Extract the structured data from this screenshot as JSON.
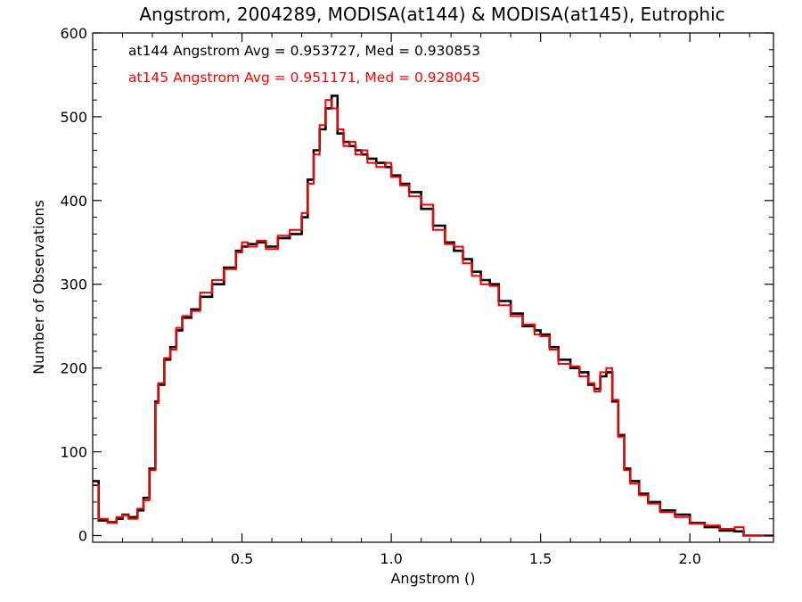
{
  "chart_data": {
    "type": "line",
    "step": true,
    "title": "Angstrom, 2004289, MODISA(at144) & MODISA(at145), Eutrophic",
    "xlabel": "Angstrom ()",
    "ylabel": "Number of Observations",
    "xlim": [
      0.0,
      2.28
    ],
    "ylim": [
      -8,
      600
    ],
    "xticks": [
      0.5,
      1.0,
      1.5,
      2.0
    ],
    "xtick_labels": [
      "0.5",
      "1.0",
      "1.5",
      "2.0"
    ],
    "yticks": [
      0,
      100,
      200,
      300,
      400,
      500,
      600
    ],
    "ytick_labels": [
      "0",
      "100",
      "200",
      "300",
      "400",
      "500",
      "600"
    ],
    "grid": false,
    "annotations": [
      {
        "text": "at144 Angstrom Avg = 0.953727, Med = 0.930853",
        "color": "#000000"
      },
      {
        "text": "at145 Angstrom Avg = 0.951171, Med = 0.928045",
        "color": "#ff0000"
      }
    ],
    "series": [
      {
        "id": "at144",
        "color": "#000000",
        "x": [
          0.0,
          0.02,
          0.05,
          0.08,
          0.1,
          0.12,
          0.15,
          0.17,
          0.19,
          0.21,
          0.22,
          0.24,
          0.26,
          0.28,
          0.3,
          0.33,
          0.36,
          0.4,
          0.44,
          0.48,
          0.5,
          0.52,
          0.55,
          0.58,
          0.62,
          0.66,
          0.7,
          0.72,
          0.74,
          0.76,
          0.78,
          0.8,
          0.82,
          0.84,
          0.86,
          0.88,
          0.9,
          0.92,
          0.95,
          0.98,
          1.0,
          1.03,
          1.06,
          1.1,
          1.14,
          1.18,
          1.21,
          1.24,
          1.27,
          1.3,
          1.33,
          1.36,
          1.4,
          1.44,
          1.48,
          1.5,
          1.53,
          1.56,
          1.6,
          1.63,
          1.66,
          1.68,
          1.7,
          1.72,
          1.74,
          1.76,
          1.78,
          1.8,
          1.83,
          1.86,
          1.9,
          1.95,
          2.0,
          2.05,
          2.1,
          2.15,
          2.18,
          2.28
        ],
        "values": [
          65,
          18,
          16,
          20,
          25,
          22,
          30,
          45,
          80,
          160,
          180,
          210,
          225,
          245,
          260,
          270,
          285,
          300,
          320,
          340,
          345,
          348,
          350,
          345,
          355,
          360,
          380,
          425,
          460,
          485,
          510,
          525,
          480,
          470,
          465,
          460,
          455,
          450,
          445,
          440,
          430,
          420,
          410,
          390,
          370,
          350,
          340,
          330,
          315,
          305,
          300,
          280,
          265,
          250,
          245,
          240,
          225,
          210,
          200,
          195,
          180,
          175,
          190,
          195,
          160,
          120,
          80,
          65,
          50,
          40,
          30,
          25,
          15,
          10,
          6,
          5,
          0,
          0
        ]
      },
      {
        "id": "at145",
        "color": "#ff0000",
        "x": [
          0.0,
          0.02,
          0.05,
          0.08,
          0.1,
          0.12,
          0.15,
          0.17,
          0.19,
          0.21,
          0.22,
          0.24,
          0.26,
          0.28,
          0.3,
          0.33,
          0.36,
          0.4,
          0.44,
          0.48,
          0.5,
          0.52,
          0.55,
          0.58,
          0.62,
          0.66,
          0.7,
          0.72,
          0.74,
          0.76,
          0.78,
          0.8,
          0.82,
          0.84,
          0.86,
          0.88,
          0.9,
          0.92,
          0.95,
          0.98,
          1.0,
          1.03,
          1.06,
          1.1,
          1.14,
          1.18,
          1.21,
          1.24,
          1.27,
          1.3,
          1.33,
          1.36,
          1.4,
          1.44,
          1.48,
          1.5,
          1.53,
          1.56,
          1.6,
          1.63,
          1.66,
          1.68,
          1.7,
          1.72,
          1.74,
          1.76,
          1.78,
          1.8,
          1.83,
          1.86,
          1.9,
          1.95,
          2.0,
          2.05,
          2.1,
          2.15,
          2.18,
          2.28
        ],
        "values": [
          60,
          20,
          15,
          22,
          24,
          20,
          32,
          42,
          78,
          158,
          182,
          212,
          222,
          248,
          262,
          268,
          290,
          305,
          318,
          338,
          350,
          345,
          352,
          342,
          358,
          365,
          385,
          420,
          455,
          490,
          520,
          510,
          485,
          465,
          470,
          455,
          460,
          445,
          440,
          445,
          428,
          418,
          405,
          395,
          365,
          348,
          345,
          325,
          310,
          300,
          298,
          275,
          262,
          252,
          240,
          238,
          222,
          205,
          202,
          190,
          182,
          172,
          195,
          200,
          162,
          118,
          78,
          62,
          48,
          38,
          28,
          22,
          14,
          12,
          8,
          10,
          0,
          0
        ]
      }
    ]
  }
}
